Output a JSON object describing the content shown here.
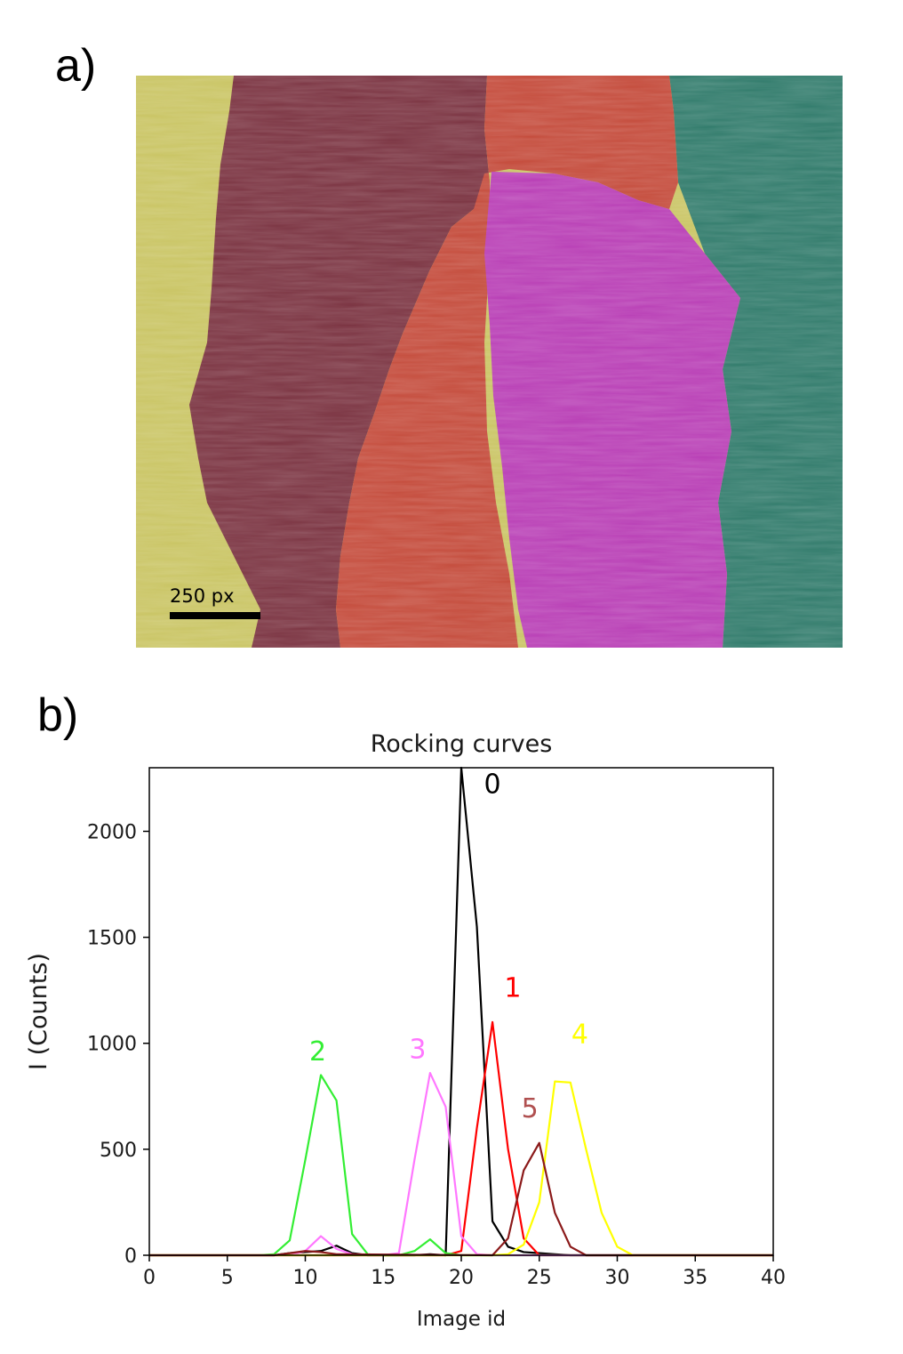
{
  "panel_a": {
    "label": "a)",
    "scale_bar_label": "250 px",
    "region_colors": [
      "#c9c462",
      "#7a3240",
      "#c44a3a",
      "#b83db5",
      "#2f7a6a"
    ]
  },
  "panel_b": {
    "label": "b)"
  },
  "chart_data": {
    "type": "line",
    "title": "Rocking curves",
    "xlabel": "Image id",
    "ylabel": "I (Counts)",
    "xlim": [
      0,
      40
    ],
    "ylim": [
      0,
      2300
    ],
    "xticks": [
      0,
      5,
      10,
      15,
      20,
      25,
      30,
      35,
      40
    ],
    "yticks": [
      0,
      500,
      1000,
      1500,
      2000
    ],
    "grid": false,
    "series": [
      {
        "label": "0",
        "color": "#000000",
        "x": [
          0,
          8,
          9,
          10,
          11,
          12,
          13,
          14,
          15,
          16,
          17,
          18,
          19,
          20,
          21,
          22,
          23,
          24,
          25,
          26,
          27,
          28,
          40
        ],
        "y": [
          0,
          0,
          10,
          15,
          20,
          45,
          10,
          0,
          0,
          0,
          0,
          5,
          0,
          2300,
          1550,
          160,
          40,
          15,
          10,
          5,
          0,
          0,
          0
        ],
        "label_at": [
          22,
          2180
        ]
      },
      {
        "label": "1",
        "color": "#ff0000",
        "x": [
          0,
          19,
          20,
          21,
          22,
          23,
          24,
          25,
          40
        ],
        "y": [
          0,
          0,
          20,
          600,
          1100,
          500,
          80,
          0,
          0
        ],
        "label_at": [
          23.3,
          1220
        ]
      },
      {
        "label": "2",
        "color": "#33ee33",
        "x": [
          0,
          7,
          8,
          9,
          10,
          11,
          12,
          13,
          14,
          15,
          16,
          17,
          18,
          19,
          20,
          40
        ],
        "y": [
          0,
          0,
          5,
          70,
          450,
          850,
          730,
          100,
          5,
          0,
          0,
          20,
          75,
          10,
          0,
          0
        ],
        "label_at": [
          10.8,
          920
        ]
      },
      {
        "label": "3",
        "color": "#ff77ff",
        "x": [
          0,
          9,
          10,
          11,
          12,
          13,
          14,
          15,
          16,
          17,
          18,
          19,
          20,
          21,
          22,
          40
        ],
        "y": [
          0,
          0,
          20,
          90,
          30,
          5,
          0,
          0,
          10,
          450,
          860,
          700,
          90,
          5,
          0,
          0
        ],
        "label_at": [
          17.2,
          930
        ]
      },
      {
        "label": "4",
        "color": "#ffff00",
        "x": [
          0,
          22,
          23,
          24,
          25,
          26,
          27,
          28,
          29,
          30,
          31,
          40
        ],
        "y": [
          0,
          0,
          5,
          50,
          250,
          820,
          815,
          500,
          200,
          40,
          0,
          0
        ],
        "label_at": [
          27.6,
          1000
        ]
      },
      {
        "label": "5",
        "color": "#8b1a1a",
        "x": [
          0,
          8,
          9,
          10,
          11,
          12,
          22,
          23,
          24,
          25,
          26,
          27,
          28,
          40
        ],
        "y": [
          0,
          0,
          10,
          20,
          15,
          5,
          0,
          80,
          400,
          530,
          200,
          40,
          0,
          0
        ],
        "label_at": [
          24.4,
          650
        ]
      }
    ],
    "series_label_colors": {
      "5": "#b05050"
    }
  }
}
